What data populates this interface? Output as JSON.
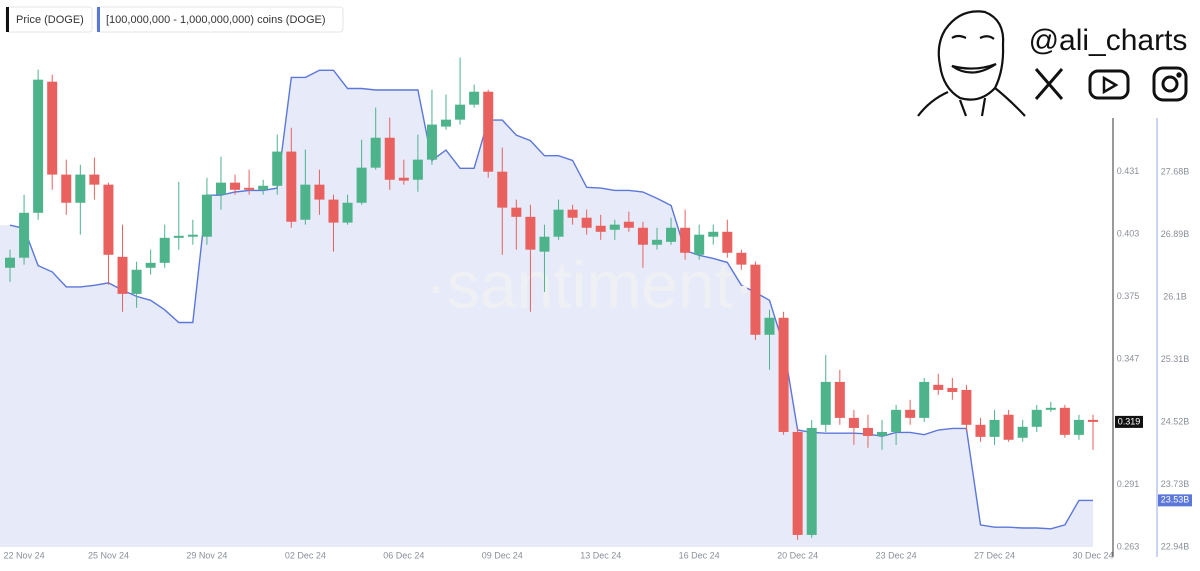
{
  "brand": {
    "handle": "@ali_charts"
  },
  "chart_data": {
    "type": "candlestick",
    "watermark": "·santiment·",
    "categories": [
      null,
      "22 Nov 24",
      null,
      null,
      null,
      null,
      null,
      "25 Nov 24",
      null,
      null,
      null,
      null,
      null,
      null,
      "29 Nov 24",
      null,
      null,
      null,
      null,
      null,
      null,
      "02 Dec 24",
      null,
      null,
      null,
      null,
      null,
      null,
      "06 Dec 24",
      null,
      null,
      null,
      null,
      null,
      null,
      "09 Dec 24",
      null,
      null,
      null,
      null,
      null,
      null,
      "13 Dec 24",
      null,
      null,
      null,
      null,
      null,
      null,
      "16 Dec 24",
      null,
      null,
      null,
      null,
      null,
      null,
      "20 Dec 24",
      null,
      null,
      null,
      null,
      null,
      null,
      "23 Dec 24",
      null,
      null,
      null,
      null,
      null,
      null,
      "27 Dec 24",
      null,
      null,
      null,
      null,
      null,
      null,
      "30 Dec 24"
    ],
    "ylim": [
      0.263,
      0.481
    ],
    "yticks": [
      0.263,
      0.291,
      0.319,
      0.347,
      0.375,
      0.403,
      0.431
    ],
    "y2lim": [
      22.94,
      29.1
    ],
    "y2ticks": [
      {
        "value": 22.94,
        "label": "22.94B"
      },
      {
        "value": 23.73,
        "label": "23.73B"
      },
      {
        "value": 24.52,
        "label": "24.52B"
      },
      {
        "value": 25.31,
        "label": "25.31B"
      },
      {
        "value": 26.1,
        "label": "26.1B"
      },
      {
        "value": 26.89,
        "label": "26.89B"
      },
      {
        "value": 27.68,
        "label": "27.68B"
      }
    ],
    "grid": false,
    "series": [
      {
        "name": "Price (DOGE)",
        "type": "candlestick",
        "color_up": "#4cb38b",
        "color_down": "#e8615f",
        "color": "#111111",
        "open": [
          0.388,
          0.3925,
          0.4126,
          0.4713,
          0.4297,
          0.4171,
          0.4297,
          0.4252,
          0.3929,
          0.3763,
          0.388,
          0.3902,
          0.4014,
          0.4019,
          0.4019,
          0.4207,
          0.4261,
          0.4238,
          0.4229,
          0.4247,
          0.44,
          0.4095,
          0.4252,
          0.4185,
          0.4082,
          0.4171,
          0.4328,
          0.4462,
          0.4283,
          0.4274,
          0.4364,
          0.4512,
          0.4543,
          0.461,
          0.4668,
          0.431,
          0.4149,
          0.4108,
          0.3952,
          0.4019,
          0.414,
          0.4104,
          0.4068,
          0.405,
          0.4086,
          0.4059,
          0.3983,
          0.3996,
          0.4059,
          0.3938,
          0.4019,
          0.4041,
          0.3947,
          0.3894,
          0.358,
          0.3656,
          0.3145,
          0.2684,
          0.3177,
          0.3369,
          0.3208,
          0.3163,
          0.3127,
          0.3145,
          0.3244,
          0.3208,
          0.3356,
          0.3342,
          0.3333,
          0.3177,
          0.3123,
          0.3222,
          0.3119,
          0.3168,
          0.3244,
          0.3253,
          0.3132,
          0.3199
        ],
        "high": [
          0.3961,
          0.4207,
          0.4767,
          0.4745,
          0.4364,
          0.4341,
          0.4373,
          0.4261,
          0.4073,
          0.3907,
          0.3961,
          0.4073,
          0.4265,
          0.4095,
          0.4283,
          0.4377,
          0.4297,
          0.4319,
          0.4274,
          0.4476,
          0.4507,
          0.4409,
          0.4319,
          0.4207,
          0.4207,
          0.4453,
          0.4597,
          0.4552,
          0.4364,
          0.4476,
          0.4677,
          0.4655,
          0.4821,
          0.47,
          0.4677,
          0.4418,
          0.4185,
          0.4162,
          0.4073,
          0.4185,
          0.4162,
          0.414,
          0.4117,
          0.4095,
          0.4131,
          0.4086,
          0.4059,
          0.4104,
          0.414,
          0.4073,
          0.4073,
          0.4095,
          0.3961,
          0.3907,
          0.3692,
          0.3683,
          0.3163,
          0.3199,
          0.349,
          0.3423,
          0.3244,
          0.3222,
          0.3199,
          0.3266,
          0.3289,
          0.3387,
          0.3405,
          0.3387,
          0.3356,
          0.3208,
          0.3244,
          0.3244,
          0.3199,
          0.3266,
          0.328,
          0.3266,
          0.3222,
          0.3222
        ],
        "low": [
          0.3817,
          0.3894,
          0.4095,
          0.4229,
          0.4117,
          0.4028,
          0.4185,
          0.3804,
          0.3683,
          0.3701,
          0.3849,
          0.388,
          0.3961,
          0.3983,
          0.3983,
          0.414,
          0.4207,
          0.4207,
          0.4207,
          0.4207,
          0.4059,
          0.4073,
          0.4117,
          0.3952,
          0.4073,
          0.4162,
          0.4319,
          0.4229,
          0.4252,
          0.422,
          0.4341,
          0.4498,
          0.4521,
          0.4597,
          0.4283,
          0.3938,
          0.3961,
          0.3683,
          0.3772,
          0.4005,
          0.4073,
          0.4028,
          0.4005,
          0.4005,
          0.4041,
          0.388,
          0.3961,
          0.3983,
          0.3916,
          0.3916,
          0.3983,
          0.3925,
          0.3871,
          0.3557,
          0.3423,
          0.3132,
          0.2662,
          0.2671,
          0.3145,
          0.3177,
          0.3087,
          0.3074,
          0.3065,
          0.3087,
          0.3177,
          0.319,
          0.3311,
          0.3289,
          0.3145,
          0.3101,
          0.3087,
          0.3101,
          0.3101,
          0.3145,
          0.3235,
          0.3119,
          0.311,
          0.3065
        ],
        "close": [
          0.3925,
          0.4126,
          0.4722,
          0.4297,
          0.4171,
          0.4297,
          0.4252,
          0.3938,
          0.3763,
          0.3871,
          0.3902,
          0.4014,
          0.4023,
          0.4028,
          0.4207,
          0.4261,
          0.4229,
          0.4229,
          0.4247,
          0.44,
          0.4086,
          0.4252,
          0.4185,
          0.4082,
          0.4171,
          0.4328,
          0.4462,
          0.4274,
          0.427,
          0.4364,
          0.4521,
          0.4543,
          0.461,
          0.4668,
          0.431,
          0.4149,
          0.4108,
          0.3961,
          0.4019,
          0.414,
          0.4104,
          0.4059,
          0.4041,
          0.4073,
          0.4059,
          0.3983,
          0.4005,
          0.4059,
          0.3947,
          0.4028,
          0.4041,
          0.3947,
          0.3894,
          0.358,
          0.3656,
          0.3145,
          0.2684,
          0.3163,
          0.3369,
          0.3208,
          0.3163,
          0.3127,
          0.3145,
          0.3244,
          0.3208,
          0.3369,
          0.3333,
          0.3324,
          0.3177,
          0.3123,
          0.3199,
          0.311,
          0.3168,
          0.3244,
          0.3253,
          0.3132,
          0.3199,
          0.319
        ]
      },
      {
        "name": "[100,000,000 - 1,000,000,000) coins (DOGE)",
        "type": "area",
        "axis": "y2",
        "color": "#5b77d9",
        "fill": "#e7eaf9",
        "last_label": "23.53B",
        "values": [
          27.01,
          26.97,
          26.5,
          26.42,
          26.23,
          26.23,
          26.25,
          26.28,
          26.19,
          26.11,
          26.06,
          25.94,
          25.78,
          25.78,
          27.39,
          27.39,
          27.43,
          27.45,
          27.45,
          27.48,
          28.88,
          28.88,
          28.97,
          28.97,
          28.74,
          28.74,
          28.72,
          28.72,
          28.72,
          28.72,
          27.83,
          27.96,
          27.73,
          27.73,
          28.34,
          28.34,
          28.15,
          28.08,
          27.89,
          27.89,
          27.83,
          27.49,
          27.48,
          27.45,
          27.45,
          27.43,
          27.35,
          27.26,
          26.69,
          26.63,
          26.59,
          26.54,
          26.25,
          26.16,
          26.06,
          25.49,
          24.42,
          24.39,
          24.38,
          24.38,
          24.38,
          24.37,
          24.34,
          24.39,
          24.39,
          24.36,
          24.42,
          24.44,
          24.44,
          23.22,
          23.19,
          23.19,
          23.18,
          23.18,
          23.17,
          23.22,
          23.53,
          23.53
        ]
      }
    ]
  }
}
